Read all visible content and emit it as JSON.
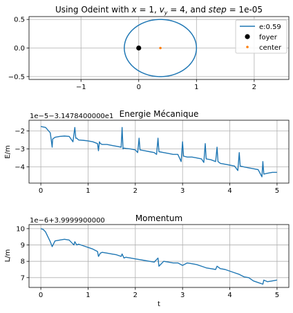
{
  "colors": {
    "line": "#1f77b4",
    "center": "#ff7f0e",
    "foyer": "#000000",
    "grid": "#b0b0b0"
  },
  "chart_data": [
    {
      "type": "line",
      "title": "Using Odeint with x = 1, v_y = 4, and step = 1e-05",
      "title_parts": [
        "Using Odeint with ",
        "x",
        " = 1, ",
        "v",
        "y",
        " = 4, and ",
        "step",
        " = 1e-05"
      ],
      "xlim": [
        -1.9,
        2.6
      ],
      "ylim": [
        -0.55,
        0.55
      ],
      "xticks": [
        -1,
        0,
        1,
        2
      ],
      "yticks": [
        -0.5,
        0.0,
        0.5
      ],
      "xtick_labels": [
        "−1",
        "0",
        "1",
        "2"
      ],
      "ytick_labels": [
        "−0.5",
        "0.0",
        "0.5"
      ],
      "grid": true,
      "legend_placement": "top-right",
      "orbit": {
        "center_x": 0.375,
        "center_y": 0.0,
        "semi_major": 0.625,
        "semi_minor": 0.5
      },
      "series": [
        {
          "name": "e:0.59",
          "kind": "line"
        },
        {
          "name": "foyer",
          "kind": "marker",
          "x": 0.0,
          "y": 0.0
        },
        {
          "name": "center",
          "kind": "marker",
          "x": 0.375,
          "y": 0.0
        }
      ]
    },
    {
      "type": "line",
      "title": "Energie Mécanique",
      "ylabel": "E/m",
      "offset_label": "1e−5−3.1478400000e1",
      "xlim": [
        -0.25,
        5.25
      ],
      "ylim": [
        -4.9,
        -1.4
      ],
      "xticks": [
        0,
        1,
        2,
        3,
        4,
        5
      ],
      "yticks": [
        -4,
        -3,
        -2
      ],
      "xtick_labels": [
        "0",
        "1",
        "2",
        "3",
        "4",
        "5"
      ],
      "ytick_labels": [
        "−4",
        "−3",
        "−2"
      ],
      "grid": true,
      "x": [
        0.0,
        0.1,
        0.2,
        0.24,
        0.25,
        0.3,
        0.4,
        0.5,
        0.6,
        0.68,
        0.72,
        0.74,
        0.76,
        0.8,
        0.9,
        1.0,
        1.1,
        1.2,
        1.22,
        1.24,
        1.26,
        1.3,
        1.4,
        1.5,
        1.6,
        1.7,
        1.72,
        1.74,
        1.76,
        1.8,
        1.9,
        2.0,
        2.05,
        2.08,
        2.1,
        2.2,
        2.3,
        2.4,
        2.45,
        2.48,
        2.5,
        2.6,
        2.7,
        2.8,
        2.9,
        2.97,
        3.0,
        3.02,
        3.1,
        3.2,
        3.3,
        3.4,
        3.45,
        3.48,
        3.5,
        3.6,
        3.7,
        3.73,
        3.75,
        3.8,
        3.9,
        4.0,
        4.1,
        4.17,
        4.2,
        4.22,
        4.3,
        4.4,
        4.5,
        4.6,
        4.68,
        4.7,
        4.72,
        4.8,
        4.9,
        5.0
      ],
      "y": [
        -1.75,
        -1.8,
        -2.1,
        -2.9,
        -2.45,
        -2.35,
        -2.3,
        -2.28,
        -2.3,
        -2.6,
        -1.8,
        -2.4,
        -2.4,
        -2.5,
        -2.52,
        -2.55,
        -2.6,
        -2.7,
        -3.1,
        -2.6,
        -2.7,
        -2.75,
        -2.75,
        -2.8,
        -2.85,
        -2.9,
        -1.8,
        -3.0,
        -2.95,
        -2.97,
        -3.0,
        -3.05,
        -3.2,
        -2.4,
        -3.05,
        -3.1,
        -3.15,
        -3.2,
        -3.3,
        -2.4,
        -3.15,
        -3.2,
        -3.25,
        -3.3,
        -3.3,
        -3.7,
        -2.6,
        -3.4,
        -3.45,
        -3.45,
        -3.5,
        -3.55,
        -3.75,
        -2.7,
        -3.55,
        -3.6,
        -3.7,
        -2.9,
        -3.7,
        -3.8,
        -3.85,
        -3.9,
        -3.95,
        -4.2,
        -3.2,
        -3.95,
        -4.0,
        -4.05,
        -4.1,
        -4.15,
        -4.55,
        -3.7,
        -4.4,
        -4.35,
        -4.3,
        -4.3
      ]
    },
    {
      "type": "line",
      "title": "Momentum",
      "xlabel": "t",
      "ylabel": "L/m",
      "offset_label": "1e−6+3.9999900000",
      "xlim": [
        -0.25,
        5.25
      ],
      "ylim": [
        6.4,
        10.25
      ],
      "xticks": [
        0,
        1,
        2,
        3,
        4,
        5
      ],
      "yticks": [
        7,
        8,
        9,
        10
      ],
      "xtick_labels": [
        "0",
        "1",
        "2",
        "3",
        "4",
        "5"
      ],
      "ytick_labels": [
        "7",
        "8",
        "9",
        "10"
      ],
      "grid": true,
      "x": [
        0.0,
        0.05,
        0.1,
        0.2,
        0.24,
        0.3,
        0.4,
        0.5,
        0.6,
        0.7,
        0.72,
        0.76,
        0.8,
        0.9,
        1.0,
        1.1,
        1.2,
        1.22,
        1.26,
        1.3,
        1.4,
        1.5,
        1.6,
        1.7,
        1.72,
        1.76,
        1.8,
        1.9,
        2.0,
        2.1,
        2.2,
        2.3,
        2.4,
        2.48,
        2.5,
        2.6,
        2.7,
        2.8,
        2.9,
        3.0,
        3.1,
        3.2,
        3.3,
        3.4,
        3.5,
        3.6,
        3.7,
        3.73,
        3.8,
        3.9,
        4.0,
        4.1,
        4.2,
        4.3,
        4.4,
        4.5,
        4.6,
        4.7,
        4.72,
        4.8,
        4.9,
        5.0
      ],
      "y": [
        10.0,
        9.95,
        9.8,
        9.2,
        8.9,
        9.25,
        9.3,
        9.35,
        9.3,
        9.0,
        9.2,
        9.0,
        9.05,
        8.95,
        8.85,
        8.75,
        8.6,
        8.3,
        8.5,
        8.55,
        8.5,
        8.45,
        8.4,
        8.3,
        8.45,
        8.2,
        8.25,
        8.2,
        8.15,
        8.1,
        8.05,
        8.0,
        7.95,
        8.2,
        7.7,
        8.0,
        7.95,
        7.9,
        7.9,
        7.75,
        7.9,
        7.85,
        7.8,
        7.7,
        7.6,
        7.55,
        7.5,
        7.7,
        7.55,
        7.5,
        7.4,
        7.3,
        7.2,
        7.05,
        7.0,
        6.8,
        6.7,
        6.6,
        6.85,
        6.75,
        6.8,
        6.85
      ]
    }
  ]
}
